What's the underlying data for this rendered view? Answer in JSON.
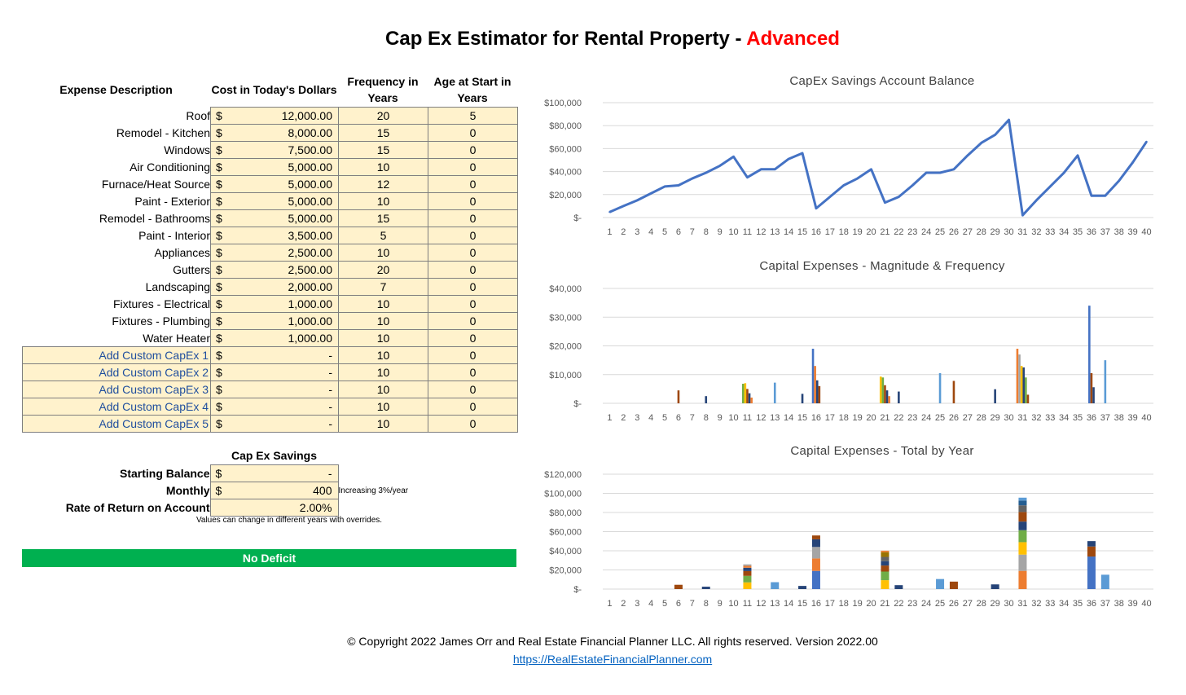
{
  "title": {
    "main": "Cap Ex Estimator for Rental Property - ",
    "accent": "Advanced"
  },
  "headers": {
    "description": "Expense Description",
    "cost": "Cost in Today's Dollars",
    "frequency": "Frequency in Years",
    "age": "Age at Start in Years"
  },
  "expenses": [
    {
      "name": "Roof",
      "currency": "$",
      "cost": "12,000.00",
      "frequency": "20",
      "age": "5",
      "custom": false
    },
    {
      "name": "Remodel - Kitchen",
      "currency": "$",
      "cost": "8,000.00",
      "frequency": "15",
      "age": "0",
      "custom": false
    },
    {
      "name": "Windows",
      "currency": "$",
      "cost": "7,500.00",
      "frequency": "15",
      "age": "0",
      "custom": false
    },
    {
      "name": "Air Conditioning",
      "currency": "$",
      "cost": "5,000.00",
      "frequency": "10",
      "age": "0",
      "custom": false
    },
    {
      "name": "Furnace/Heat Source",
      "currency": "$",
      "cost": "5,000.00",
      "frequency": "12",
      "age": "0",
      "custom": false
    },
    {
      "name": "Paint - Exterior",
      "currency": "$",
      "cost": "5,000.00",
      "frequency": "10",
      "age": "0",
      "custom": false
    },
    {
      "name": "Remodel - Bathrooms",
      "currency": "$",
      "cost": "5,000.00",
      "frequency": "15",
      "age": "0",
      "custom": false
    },
    {
      "name": "Paint - Interior",
      "currency": "$",
      "cost": "3,500.00",
      "frequency": "5",
      "age": "0",
      "custom": false
    },
    {
      "name": "Appliances",
      "currency": "$",
      "cost": "2,500.00",
      "frequency": "10",
      "age": "0",
      "custom": false
    },
    {
      "name": "Gutters",
      "currency": "$",
      "cost": "2,500.00",
      "frequency": "20",
      "age": "0",
      "custom": false
    },
    {
      "name": "Landscaping",
      "currency": "$",
      "cost": "2,000.00",
      "frequency": "7",
      "age": "0",
      "custom": false
    },
    {
      "name": "Fixtures - Electrical",
      "currency": "$",
      "cost": "1,000.00",
      "frequency": "10",
      "age": "0",
      "custom": false
    },
    {
      "name": "Fixtures - Plumbing",
      "currency": "$",
      "cost": "1,000.00",
      "frequency": "10",
      "age": "0",
      "custom": false
    },
    {
      "name": "Water Heater",
      "currency": "$",
      "cost": "1,000.00",
      "frequency": "10",
      "age": "0",
      "custom": false
    },
    {
      "name": "Add Custom CapEx 1",
      "currency": "$",
      "cost": "-",
      "frequency": "10",
      "age": "0",
      "custom": true
    },
    {
      "name": "Add Custom CapEx 2",
      "currency": "$",
      "cost": "-",
      "frequency": "10",
      "age": "0",
      "custom": true
    },
    {
      "name": "Add Custom CapEx 3",
      "currency": "$",
      "cost": "-",
      "frequency": "10",
      "age": "0",
      "custom": true
    },
    {
      "name": "Add Custom CapEx 4",
      "currency": "$",
      "cost": "-",
      "frequency": "10",
      "age": "0",
      "custom": true
    },
    {
      "name": "Add Custom CapEx 5",
      "currency": "$",
      "cost": "-",
      "frequency": "10",
      "age": "0",
      "custom": true
    }
  ],
  "savings": {
    "title": "Cap Ex Savings",
    "rows": [
      {
        "label": "Starting Balance",
        "currency": "$",
        "value": "-",
        "note": ""
      },
      {
        "label": "Monthly",
        "currency": "$",
        "value": "400",
        "note": "Increasing 3%/year"
      },
      {
        "label": "Rate of Return on Account",
        "currency": "",
        "value": "2.00%",
        "note": ""
      }
    ],
    "overrides_note": "Values can change in different years with overrides."
  },
  "status": {
    "label": "No Deficit",
    "color": "#00b050"
  },
  "footer": {
    "copyright": "© Copyright 2022 James Orr and Real Estate Financial Planner LLC. All rights reserved. Version 2022.00",
    "link": "https://RealEstateFinancialPlanner.com"
  },
  "chart_data": [
    {
      "type": "line",
      "title": "CapEx Savings Account Balance",
      "x": [
        1,
        2,
        3,
        4,
        5,
        6,
        7,
        8,
        9,
        10,
        11,
        12,
        13,
        14,
        15,
        16,
        17,
        18,
        19,
        20,
        21,
        22,
        23,
        24,
        25,
        26,
        27,
        28,
        29,
        30,
        31,
        32,
        33,
        34,
        35,
        36,
        37,
        38,
        39,
        40
      ],
      "y": [
        4800,
        10000,
        15000,
        21000,
        27000,
        28000,
        34000,
        39000,
        45000,
        53000,
        35000,
        42000,
        42000,
        51000,
        56000,
        8000,
        18000,
        28000,
        34000,
        42000,
        13000,
        18000,
        28000,
        39000,
        39000,
        42000,
        54000,
        65000,
        72000,
        85000,
        2000,
        15000,
        27000,
        39000,
        54000,
        19000,
        19000,
        32000,
        48000,
        66000
      ],
      "ylim": [
        0,
        100000
      ],
      "yticks": [
        "$100,000",
        "$80,000",
        "$60,000",
        "$40,000",
        "$20,000",
        "$-"
      ],
      "color": "#4472c4",
      "grid": true
    },
    {
      "type": "bar",
      "title": "Capital Expenses - Magnitude & Frequency",
      "categories": [
        1,
        2,
        3,
        4,
        5,
        6,
        7,
        8,
        9,
        10,
        11,
        12,
        13,
        14,
        15,
        16,
        17,
        18,
        19,
        20,
        21,
        22,
        23,
        24,
        25,
        26,
        27,
        28,
        29,
        30,
        31,
        32,
        33,
        34,
        35,
        36,
        37,
        38,
        39,
        40
      ],
      "ylim": [
        0,
        40000
      ],
      "yticks": [
        "$40,000",
        "$30,000",
        "$20,000",
        "$10,000",
        "$-"
      ],
      "grid": true,
      "bars": [
        {
          "x": 6,
          "values": [
            4500
          ],
          "colors": [
            "#9e480e"
          ]
        },
        {
          "x": 8,
          "values": [
            2500
          ],
          "colors": [
            "#264478"
          ]
        },
        {
          "x": 11,
          "values": [
            6800,
            7000,
            5000,
            3500,
            2000
          ],
          "colors": [
            "#70ad47",
            "#ffc000",
            "#9e480e",
            "#264478",
            "#ed7d31"
          ]
        },
        {
          "x": 13,
          "values": [
            7200
          ],
          "colors": [
            "#5b9bd5"
          ]
        },
        {
          "x": 15,
          "values": [
            3300
          ],
          "colors": [
            "#264478"
          ]
        },
        {
          "x": 16,
          "values": [
            19000,
            13000,
            8000,
            6000
          ],
          "colors": [
            "#4472c4",
            "#ed7d31",
            "#264478",
            "#9e480e"
          ]
        },
        {
          "x": 21,
          "values": [
            9300,
            9000,
            6300,
            4500,
            2500
          ],
          "colors": [
            "#ffc000",
            "#70ad47",
            "#9e480e",
            "#264478",
            "#ed7d31"
          ]
        },
        {
          "x": 22,
          "values": [
            4100
          ],
          "colors": [
            "#264478"
          ]
        },
        {
          "x": 25,
          "values": [
            10500
          ],
          "colors": [
            "#5b9bd5"
          ]
        },
        {
          "x": 26,
          "values": [
            7800
          ],
          "colors": [
            "#9e480e"
          ]
        },
        {
          "x": 29,
          "values": [
            4900
          ],
          "colors": [
            "#264478"
          ]
        },
        {
          "x": 31,
          "values": [
            19000,
            17000,
            13000,
            12500,
            9000,
            3000
          ],
          "colors": [
            "#ed7d31",
            "#a5a5a5",
            "#ffc000",
            "#264478",
            "#70ad47",
            "#9e480e"
          ]
        },
        {
          "x": 36,
          "values": [
            34000,
            10500,
            5600
          ],
          "colors": [
            "#4472c4",
            "#9e480e",
            "#264478"
          ]
        },
        {
          "x": 37,
          "values": [
            15000
          ],
          "colors": [
            "#5b9bd5"
          ]
        }
      ]
    },
    {
      "type": "bar",
      "title": "Capital Expenses - Total by Year",
      "categories": [
        1,
        2,
        3,
        4,
        5,
        6,
        7,
        8,
        9,
        10,
        11,
        12,
        13,
        14,
        15,
        16,
        17,
        18,
        19,
        20,
        21,
        22,
        23,
        24,
        25,
        26,
        27,
        28,
        29,
        30,
        31,
        32,
        33,
        34,
        35,
        36,
        37,
        38,
        39,
        40
      ],
      "ylim": [
        0,
        120000
      ],
      "yticks": [
        "$120,000",
        "$100,000",
        "$80,000",
        "$60,000",
        "$40,000",
        "$20,000",
        "$-"
      ],
      "grid": true,
      "stacked": true,
      "bars": [
        {
          "x": 6,
          "segments": [
            4500
          ],
          "colors": [
            "#9e480e"
          ]
        },
        {
          "x": 8,
          "segments": [
            2500
          ],
          "colors": [
            "#264478"
          ]
        },
        {
          "x": 11,
          "segments": [
            7000,
            6800,
            5000,
            3500,
            2000,
            1500
          ],
          "colors": [
            "#ffc000",
            "#70ad47",
            "#9e480e",
            "#264478",
            "#ed7d31",
            "#a5a5a5"
          ]
        },
        {
          "x": 13,
          "segments": [
            7200
          ],
          "colors": [
            "#5b9bd5"
          ]
        },
        {
          "x": 15,
          "segments": [
            3300
          ],
          "colors": [
            "#264478"
          ]
        },
        {
          "x": 16,
          "segments": [
            19000,
            13000,
            12000,
            8000,
            4000
          ],
          "colors": [
            "#4472c4",
            "#ed7d31",
            "#a5a5a5",
            "#264478",
            "#9e480e"
          ]
        },
        {
          "x": 21,
          "segments": [
            9300,
            9000,
            6300,
            4500,
            4500,
            5000,
            1500
          ],
          "colors": [
            "#ffc000",
            "#70ad47",
            "#9e480e",
            "#264478",
            "#636363",
            "#997300",
            "#ed7d31"
          ]
        },
        {
          "x": 22,
          "segments": [
            4100
          ],
          "colors": [
            "#264478"
          ]
        },
        {
          "x": 25,
          "segments": [
            10500
          ],
          "colors": [
            "#5b9bd5"
          ]
        },
        {
          "x": 26,
          "segments": [
            7800
          ],
          "colors": [
            "#9e480e"
          ]
        },
        {
          "x": 29,
          "segments": [
            4900
          ],
          "colors": [
            "#264478"
          ]
        },
        {
          "x": 31,
          "segments": [
            19000,
            17000,
            13000,
            12500,
            9000,
            10000,
            7000,
            5000,
            3000
          ],
          "colors": [
            "#ed7d31",
            "#a5a5a5",
            "#ffc000",
            "#70ad47",
            "#264478",
            "#9e480e",
            "#636363",
            "#255e91",
            "#5b9bd5"
          ]
        },
        {
          "x": 36,
          "segments": [
            34000,
            10500,
            5600
          ],
          "colors": [
            "#4472c4",
            "#9e480e",
            "#264478"
          ]
        },
        {
          "x": 37,
          "segments": [
            15000
          ],
          "colors": [
            "#5b9bd5"
          ]
        }
      ]
    }
  ]
}
